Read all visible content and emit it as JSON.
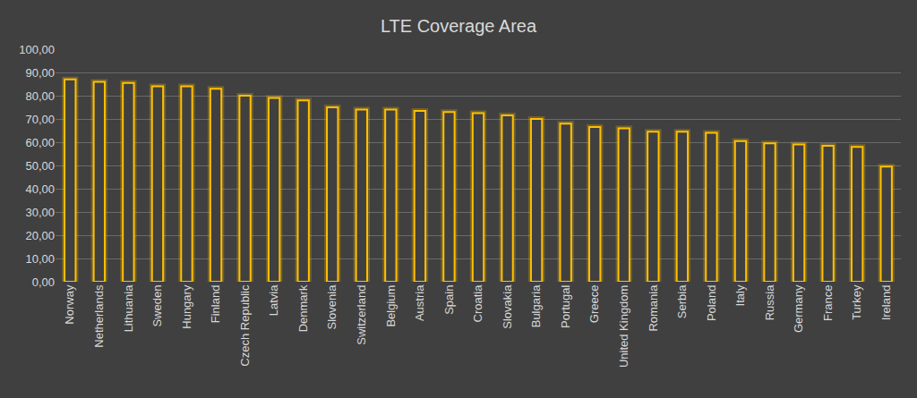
{
  "chart_data": {
    "type": "bar",
    "title": "LTE Coverage Area",
    "categories": [
      "Norway",
      "Netherlands",
      "Lithuania",
      "Sweden",
      "Hungary",
      "Finland",
      "Czech Republic",
      "Latvia",
      "Denmark",
      "Slovenia",
      "Switzerland",
      "Belgium",
      "Austria",
      "Spain",
      "Croatia",
      "Slovakia",
      "Bulgaria",
      "Portugal",
      "Greece",
      "United Kingdom",
      "Romania",
      "Serbia",
      "Poland",
      "Italy",
      "Russia",
      "Germany",
      "France",
      "Turkey",
      "Ireland"
    ],
    "values": [
      87,
      86,
      85.5,
      84,
      84,
      83,
      80,
      79,
      78,
      75,
      74,
      74,
      73.5,
      73,
      72.5,
      71.5,
      70,
      68,
      66.5,
      66,
      64.5,
      64.5,
      64,
      60.5,
      59.5,
      59,
      58.5,
      58,
      49.5
    ],
    "color": "#ffc000",
    "ylim": [
      0,
      100
    ],
    "yticks": [
      {
        "value": 0,
        "label": "0,00"
      },
      {
        "value": 10,
        "label": "10,00"
      },
      {
        "value": 20,
        "label": "20,00"
      },
      {
        "value": 30,
        "label": "30,00"
      },
      {
        "value": 40,
        "label": "40,00"
      },
      {
        "value": 50,
        "label": "50,00"
      },
      {
        "value": 60,
        "label": "60,00"
      },
      {
        "value": 70,
        "label": "70,00"
      },
      {
        "value": 80,
        "label": "80,00"
      },
      {
        "value": 90,
        "label": "90,00"
      },
      {
        "value": 100,
        "label": "100,00"
      }
    ],
    "grid": true
  }
}
